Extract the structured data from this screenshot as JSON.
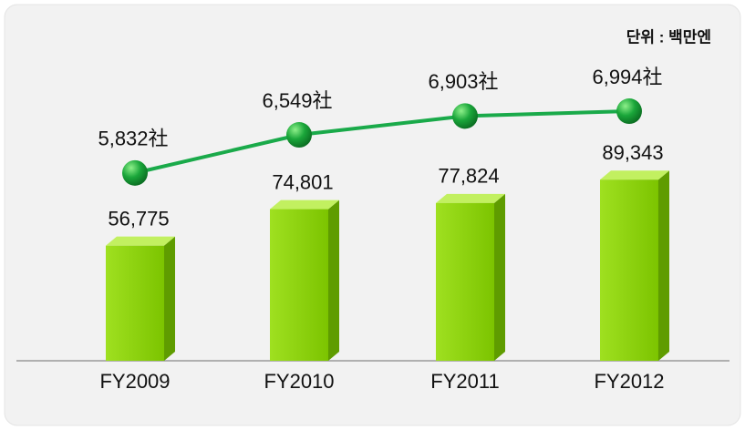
{
  "chart_data": {
    "type": "bar",
    "unit": "단위 : 백만엔",
    "categories": [
      "FY2009",
      "FY2010",
      "FY2011",
      "FY2012"
    ],
    "series": [
      {
        "type": "bar",
        "color": "#8fd400",
        "values": [
          56775,
          74801,
          77824,
          89343
        ],
        "value_labels": [
          "56,775",
          "74,801",
          "77,824",
          "89,343"
        ]
      },
      {
        "type": "line",
        "axis": "y2",
        "color": "#1aaa4a",
        "values": [
          5832,
          6549,
          6903,
          6994
        ],
        "value_labels": [
          "5,832社",
          "6,549社",
          "6,903社",
          "6,994社"
        ]
      }
    ],
    "ylim": [
      0,
      160000
    ],
    "y2lim": [
      2300,
      8400
    ]
  }
}
